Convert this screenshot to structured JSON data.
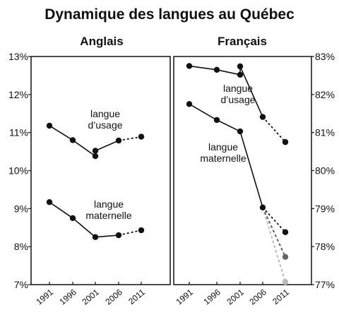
{
  "chart_data": {
    "type": "line",
    "title": "Dynamique des langues au Québec",
    "x": [
      1991,
      1996,
      2001,
      2006,
      2011
    ],
    "x_tick_labels": [
      "1991",
      "1996",
      "2001",
      "2006",
      "2011"
    ],
    "panels": [
      {
        "name": "Anglais",
        "title": "Anglais",
        "ylim": [
          7,
          13
        ],
        "y_ticks": [
          7,
          8,
          9,
          10,
          11,
          12,
          13
        ],
        "y_tick_labels": [
          "7%",
          "8%",
          "9%",
          "10%",
          "11%",
          "12%",
          "13%"
        ],
        "y_axis_side": "left",
        "series": [
          {
            "name": "langue d'usage",
            "label": "langue\nd’usage",
            "points": [
              [
                1991,
                11.18
              ],
              [
                1996,
                10.8
              ],
              [
                2001,
                10.38
              ],
              [
                2001,
                10.52
              ],
              [
                2006,
                10.79
              ]
            ],
            "projection": [
              [
                2006,
                10.79
              ],
              [
                2011,
                10.89
              ]
            ]
          },
          {
            "name": "langue maternelle",
            "label": "langue\nmaternelle",
            "points": [
              [
                1991,
                9.17
              ],
              [
                1996,
                8.75
              ],
              [
                2001,
                8.25
              ],
              [
                2006,
                8.3
              ]
            ],
            "projection": [
              [
                2006,
                8.3
              ],
              [
                2011,
                8.43
              ]
            ]
          }
        ]
      },
      {
        "name": "Français",
        "title": "Français",
        "ylim": [
          77,
          83
        ],
        "y_ticks": [
          77,
          78,
          79,
          80,
          81,
          82,
          83
        ],
        "y_tick_labels": [
          "77%",
          "78%",
          "79%",
          "80%",
          "81%",
          "82%",
          "83%"
        ],
        "y_axis_side": "right",
        "series": [
          {
            "name": "langue d'usage",
            "label": "langue\nd’usage",
            "points": [
              [
                1991,
                82.75
              ],
              [
                1996,
                82.65
              ],
              [
                2001,
                82.52
              ],
              [
                2001,
                82.74
              ],
              [
                2006,
                81.41
              ]
            ],
            "projection": [
              [
                2006,
                81.41
              ],
              [
                2011,
                80.75
              ]
            ]
          },
          {
            "name": "langue maternelle",
            "label": "langue\nmaternelle",
            "points": [
              [
                1991,
                81.75
              ],
              [
                1996,
                81.33
              ],
              [
                2001,
                81.03
              ],
              [
                2006,
                79.03
              ]
            ],
            "projection": [
              [
                2006,
                79.03
              ],
              [
                2011,
                78.38
              ]
            ],
            "scenarios": [
              {
                "color": "#666666",
                "points": [
                  [
                    2006,
                    79.03
                  ],
                  [
                    2011,
                    77.73
                  ]
                ]
              },
              {
                "color": "#bbbbbb",
                "points": [
                  [
                    2006,
                    79.03
                  ],
                  [
                    2011,
                    77.07
                  ]
                ]
              }
            ]
          }
        ]
      }
    ],
    "colors": {
      "line": "#111111",
      "grey_dark": "#666666",
      "grey_light": "#bbbbbb"
    },
    "grid": false
  }
}
